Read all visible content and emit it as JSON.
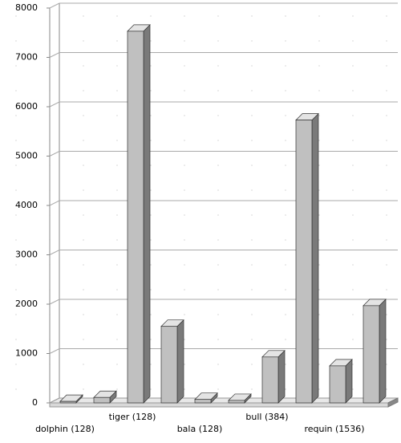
{
  "chart_data": {
    "type": "bar",
    "categories": [
      "dolphin (128)",
      null,
      "tiger (128)",
      null,
      "bala (128)",
      null,
      "bull (384)",
      null,
      "requin (1536)",
      null
    ],
    "values": [
      30,
      110,
      7530,
      1550,
      70,
      50,
      930,
      5730,
      750,
      1970
    ],
    "color": "#c0c0c0",
    "ylim": [
      0,
      8000
    ],
    "yticks": [
      0,
      1000,
      2000,
      3000,
      4000,
      5000,
      6000,
      7000,
      8000
    ],
    "grid": true
  }
}
